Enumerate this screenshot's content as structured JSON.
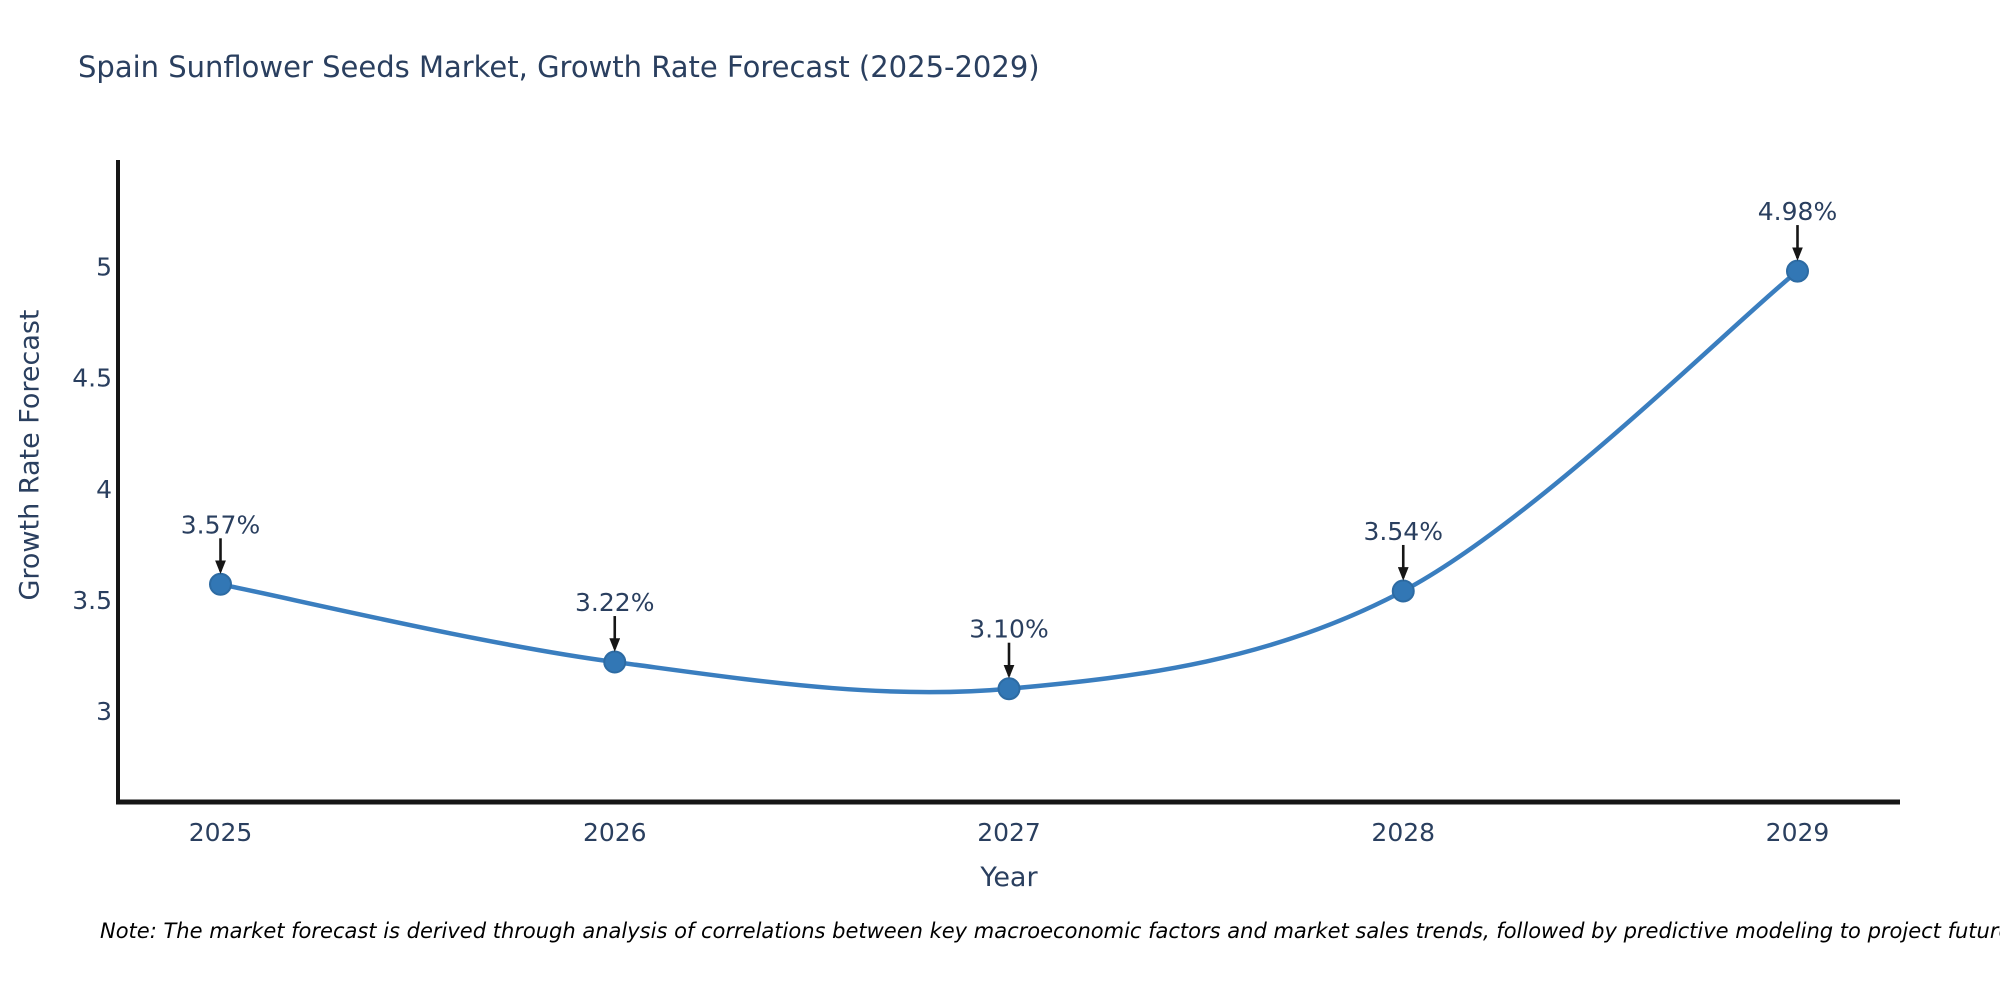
{
  "page": {
    "note": "Note: The market forecast is derived through analysis of correlations between key macroeconomic factors and market sales trends, followed by predictive modeling to project future sales."
  },
  "chart_data": {
    "type": "line",
    "title": "Spain Sunflower Seeds Market, Growth Rate Forecast (2025-2029)",
    "xlabel": "Year",
    "ylabel": "Growth Rate Forecast",
    "categories": [
      "2025",
      "2026",
      "2027",
      "2028",
      "2029"
    ],
    "x": [
      2025,
      2026,
      2027,
      2028,
      2029
    ],
    "series": [
      {
        "name": "Growth Rate Forecast",
        "values": [
          3.57,
          3.22,
          3.1,
          3.54,
          4.98
        ]
      }
    ],
    "point_labels": [
      "3.57%",
      "3.22%",
      "3.10%",
      "3.54%",
      "4.98%"
    ],
    "yticks": [
      3,
      3.5,
      4,
      4.5,
      5
    ],
    "ytick_labels": [
      "3",
      "3.5",
      "4",
      "4.5",
      "5"
    ],
    "ylim": [
      2.59,
      5.48
    ],
    "xlim": [
      2024.74,
      2029.26
    ],
    "grid": false,
    "legend_position": "none",
    "line_shape": "spline",
    "colors": {
      "line": "#3a7ebf",
      "marker_fill": "#3277b5",
      "marker_border": "#2d6ba3",
      "text": "#2a3f5f",
      "axis_line": "#161616",
      "arrow": "#161616",
      "background": "#ffffff"
    }
  }
}
